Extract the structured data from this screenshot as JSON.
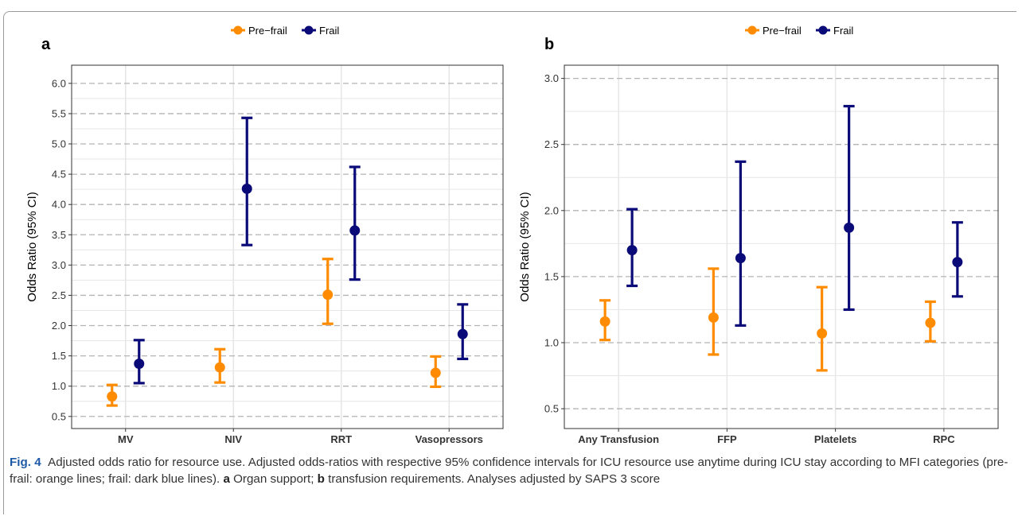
{
  "figure": {
    "caption": {
      "label": "Fig. 4",
      "text_1": "Adjusted odds ratio for resource use. Adjusted odds-ratios with respective 95% confidence intervals for ICU resource use anytime during ICU stay according to MFI categories (pre-frail: orange lines; frail: dark blue lines). ",
      "panel_a_letter": "a",
      "text_2": " Organ support; ",
      "panel_b_letter": "b",
      "text_3": " transfusion requirements. Analyses adjusted by SAPS 3 score"
    }
  },
  "colors": {
    "pre_frail": "#ff8c00",
    "frail": "#0a0a78",
    "grid_major": "#b4b4b4",
    "grid_minor": "#e6e6e6"
  },
  "chart_data": [
    {
      "panel": "a",
      "type": "errorbar",
      "legend": [
        "Pre−frail",
        "Frail"
      ],
      "legend_position": "top",
      "ylabel": "Odds Ratio (95% CI)",
      "xlabel": "",
      "ylim": [
        0.3,
        6.3
      ],
      "yticks": [
        "0.5",
        "1.0",
        "1.5",
        "2.0",
        "2.5",
        "3.0",
        "3.5",
        "4.0",
        "4.5",
        "5.0",
        "5.5",
        "6.0"
      ],
      "categories": [
        "MV",
        "NIV",
        "RRT",
        "Vasopressors"
      ],
      "series": [
        {
          "name": "Pre−frail",
          "color": "#ff8c00",
          "points": [
            {
              "est": 0.83,
              "lo": 0.68,
              "hi": 1.02
            },
            {
              "est": 1.31,
              "lo": 1.06,
              "hi": 1.61
            },
            {
              "est": 2.51,
              "lo": 2.03,
              "hi": 3.1
            },
            {
              "est": 1.22,
              "lo": 0.99,
              "hi": 1.49
            }
          ]
        },
        {
          "name": "Frail",
          "color": "#0a0a78",
          "points": [
            {
              "est": 1.37,
              "lo": 1.05,
              "hi": 1.76
            },
            {
              "est": 4.26,
              "lo": 3.33,
              "hi": 5.43
            },
            {
              "est": 3.57,
              "lo": 2.76,
              "hi": 4.62
            },
            {
              "est": 1.86,
              "lo": 1.45,
              "hi": 2.35
            }
          ]
        }
      ]
    },
    {
      "panel": "b",
      "type": "errorbar",
      "legend": [
        "Pre−frail",
        "Frail"
      ],
      "legend_position": "top",
      "ylabel": "Odds Ratio (95% CI)",
      "xlabel": "",
      "ylim": [
        0.35,
        3.1
      ],
      "yticks": [
        "0.5",
        "1.0",
        "1.5",
        "2.0",
        "2.5",
        "3.0"
      ],
      "categories": [
        "Any Transfusion",
        "FFP",
        "Platelets",
        "RPC"
      ],
      "series": [
        {
          "name": "Pre−frail",
          "color": "#ff8c00",
          "points": [
            {
              "est": 1.16,
              "lo": 1.02,
              "hi": 1.32
            },
            {
              "est": 1.19,
              "lo": 0.91,
              "hi": 1.56
            },
            {
              "est": 1.07,
              "lo": 0.79,
              "hi": 1.42
            },
            {
              "est": 1.15,
              "lo": 1.01,
              "hi": 1.31
            }
          ]
        },
        {
          "name": "Frail",
          "color": "#0a0a78",
          "points": [
            {
              "est": 1.7,
              "lo": 1.43,
              "hi": 2.01
            },
            {
              "est": 1.64,
              "lo": 1.13,
              "hi": 2.37
            },
            {
              "est": 1.87,
              "lo": 1.25,
              "hi": 2.79
            },
            {
              "est": 1.61,
              "lo": 1.35,
              "hi": 1.91
            }
          ]
        }
      ]
    }
  ]
}
